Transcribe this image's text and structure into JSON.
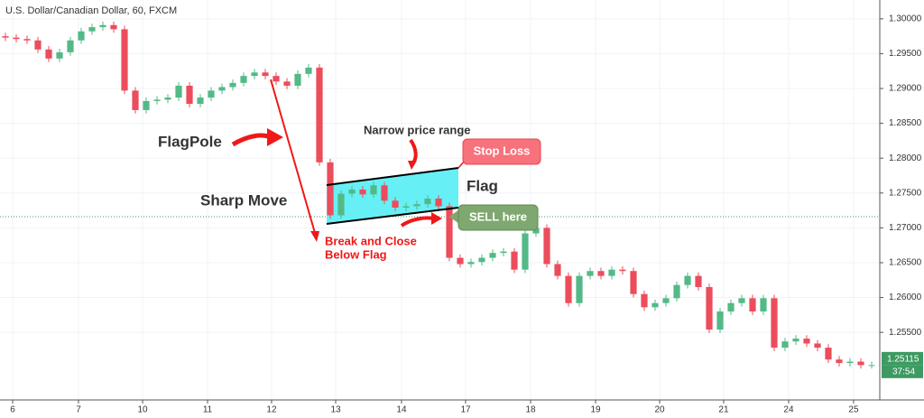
{
  "chart_data": {
    "type": "candlestick",
    "title": "U.S. Dollar/Canadian Dollar, 60, FXCM",
    "colors": {
      "up": "#53b987",
      "down": "#eb4d5c"
    },
    "x": [
      0,
      1,
      2,
      3,
      4,
      5,
      6,
      7,
      8,
      9,
      10,
      11,
      12,
      13,
      14,
      15,
      16,
      17,
      18,
      19,
      20,
      21,
      22,
      23,
      24,
      25,
      26,
      27,
      28,
      29,
      30,
      31,
      32,
      33,
      34,
      35,
      36,
      37,
      38,
      39,
      40,
      41,
      42,
      43,
      44,
      45,
      46,
      47,
      48,
      49,
      50,
      51,
      52,
      53,
      54,
      55,
      56,
      57,
      58,
      59,
      60,
      61,
      62,
      63,
      64,
      65,
      66,
      67,
      68,
      69,
      70,
      71,
      72,
      73,
      74,
      75,
      76,
      77,
      78,
      79,
      80
    ],
    "open": [
      1.2975,
      1.2973,
      1.2971,
      1.2969,
      1.2956,
      1.2943,
      1.2952,
      1.2969,
      1.2982,
      1.2988,
      1.2991,
      1.2985,
      1.2897,
      1.2869,
      1.2882,
      1.2884,
      1.2887,
      1.2904,
      1.2878,
      1.2887,
      1.2897,
      1.2902,
      1.2908,
      1.2918,
      1.2923,
      1.2918,
      1.291,
      1.2904,
      1.2921,
      1.293,
      1.2794,
      1.2718,
      1.2749,
      1.2755,
      1.2748,
      1.2761,
      1.2739,
      1.2729,
      1.2731,
      1.2734,
      1.2742,
      1.2731,
      1.2657,
      1.2648,
      1.2651,
      1.2657,
      1.2664,
      1.2666,
      1.264,
      1.2692,
      1.27,
      1.2648,
      1.2631,
      1.2592,
      1.2631,
      1.2638,
      1.2631,
      1.264,
      1.2638,
      1.2605,
      1.2586,
      1.2592,
      1.2599,
      1.2618,
      1.2631,
      1.2615,
      1.2554,
      1.258,
      1.2592,
      1.2599,
      1.258,
      1.2599,
      1.2528,
      1.2537,
      1.2541,
      1.2534,
      1.2528,
      1.2511,
      1.2506,
      1.2508,
      1.2503
    ],
    "high": [
      1.298,
      1.2978,
      1.2976,
      1.2974,
      1.2961,
      1.2957,
      1.2974,
      1.2987,
      1.2993,
      1.2996,
      1.2996,
      1.299,
      1.2902,
      1.2887,
      1.2889,
      1.2892,
      1.2909,
      1.2909,
      1.2892,
      1.2902,
      1.2907,
      1.2913,
      1.2923,
      1.2928,
      1.2928,
      1.2923,
      1.2915,
      1.2926,
      1.2935,
      1.2935,
      1.2799,
      1.2754,
      1.276,
      1.276,
      1.2766,
      1.2766,
      1.2744,
      1.2736,
      1.2739,
      1.2747,
      1.2747,
      1.2736,
      1.2662,
      1.2656,
      1.2662,
      1.2669,
      1.2671,
      1.2671,
      1.2697,
      1.2705,
      1.2705,
      1.2653,
      1.2636,
      1.2636,
      1.2643,
      1.2643,
      1.2645,
      1.2645,
      1.2643,
      1.261,
      1.2597,
      1.2604,
      1.2623,
      1.2636,
      1.2636,
      1.262,
      1.2585,
      1.2597,
      1.2604,
      1.2604,
      1.2604,
      1.2604,
      1.2542,
      1.2546,
      1.2546,
      1.2539,
      1.2533,
      1.2516,
      1.2513,
      1.2513,
      1.2508
    ],
    "low": [
      1.2968,
      1.2966,
      1.2964,
      1.2951,
      1.2938,
      1.2938,
      1.2947,
      1.2964,
      1.2977,
      1.2983,
      1.298,
      1.2892,
      1.2864,
      1.2864,
      1.2877,
      1.2879,
      1.2882,
      1.2873,
      1.2873,
      1.2882,
      1.2892,
      1.2897,
      1.2903,
      1.2913,
      1.2913,
      1.2905,
      1.2899,
      1.2899,
      1.2916,
      1.2789,
      1.2713,
      1.2713,
      1.2744,
      1.2743,
      1.2743,
      1.2734,
      1.2724,
      1.2724,
      1.2726,
      1.2729,
      1.2726,
      1.2652,
      1.2643,
      1.2643,
      1.2646,
      1.2652,
      1.2659,
      1.2635,
      1.2635,
      1.2687,
      1.2643,
      1.2626,
      1.2587,
      1.2587,
      1.2626,
      1.2626,
      1.2626,
      1.2633,
      1.26,
      1.2581,
      1.2581,
      1.2587,
      1.2594,
      1.2613,
      1.261,
      1.2549,
      1.2549,
      1.2575,
      1.2587,
      1.2575,
      1.2575,
      1.2523,
      1.2523,
      1.2532,
      1.2529,
      1.2523,
      1.2506,
      1.2501,
      1.2501,
      1.2498,
      1.2498
    ],
    "close": [
      1.2973,
      1.2971,
      1.2969,
      1.2956,
      1.2943,
      1.2952,
      1.2969,
      1.2982,
      1.2988,
      1.2991,
      1.2985,
      1.2897,
      1.2869,
      1.2882,
      1.2884,
      1.2887,
      1.2904,
      1.2878,
      1.2887,
      1.2897,
      1.2902,
      1.2908,
      1.2918,
      1.2923,
      1.2918,
      1.291,
      1.2904,
      1.2921,
      1.293,
      1.2794,
      1.2718,
      1.2749,
      1.2755,
      1.2748,
      1.2761,
      1.2739,
      1.2729,
      1.2731,
      1.2734,
      1.2742,
      1.2731,
      1.2657,
      1.2648,
      1.2651,
      1.2657,
      1.2664,
      1.2666,
      1.264,
      1.2692,
      1.27,
      1.2648,
      1.2631,
      1.2592,
      1.2631,
      1.2638,
      1.2631,
      1.264,
      1.2638,
      1.2605,
      1.2586,
      1.2592,
      1.2599,
      1.2618,
      1.2631,
      1.2615,
      1.2554,
      1.258,
      1.2592,
      1.2599,
      1.258,
      1.2599,
      1.2528,
      1.2537,
      1.2541,
      1.2534,
      1.2528,
      1.2511,
      1.2506,
      1.2508,
      1.2503,
      1.2503
    ],
    "xlim": [
      -0.5,
      80.75
    ],
    "xticks": [
      {
        "value": 0.67,
        "label": "6"
      },
      {
        "value": 6.75,
        "label": "7"
      },
      {
        "value": 12.67,
        "label": "10"
      },
      {
        "value": 18.67,
        "label": "11"
      },
      {
        "value": 24.58,
        "label": "12"
      },
      {
        "value": 30.5,
        "label": "13"
      },
      {
        "value": 36.58,
        "label": "14"
      },
      {
        "value": 42.5,
        "label": "17"
      },
      {
        "value": 48.5,
        "label": "18"
      },
      {
        "value": 54.5,
        "label": "19"
      },
      {
        "value": 60.42,
        "label": "20"
      },
      {
        "value": 66.33,
        "label": "21"
      },
      {
        "value": 72.33,
        "label": "24"
      },
      {
        "value": 78.33,
        "label": "25"
      }
    ],
    "ylim": [
      1.2453,
      1.3027
    ],
    "yticks": [
      {
        "value": 1.255,
        "label": "1.25500"
      },
      {
        "value": 1.26,
        "label": "1.26000"
      },
      {
        "value": 1.265,
        "label": "1.26500"
      },
      {
        "value": 1.27,
        "label": "1.27000"
      },
      {
        "value": 1.275,
        "label": "1.27500"
      },
      {
        "value": 1.28,
        "label": "1.28000"
      },
      {
        "value": 1.285,
        "label": "1.28500"
      },
      {
        "value": 1.29,
        "label": "1.29000"
      },
      {
        "value": 1.295,
        "label": "1.29500"
      },
      {
        "value": 1.3,
        "label": "1.30000"
      }
    ],
    "reference_line": 1.2716,
    "last_price": {
      "value": 1.25115,
      "label": "1.25115"
    },
    "countdown": "37:54",
    "annotations": {
      "flagpole": "FlagPole",
      "sharp_move": "Sharp Move",
      "narrow": "Narrow price range",
      "flag": "Flag",
      "stop_loss": "Stop Loss",
      "sell": "SELL here",
      "break_1": "Break and Close",
      "break_2": "Below Flag"
    }
  }
}
